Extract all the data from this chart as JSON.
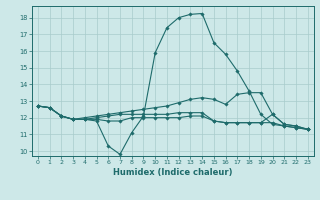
{
  "background_color": "#cde8e8",
  "grid_color": "#a8cccc",
  "line_color": "#1e6b6b",
  "xlabel": "Humidex (Indice chaleur)",
  "xlim": [
    -0.5,
    23.5
  ],
  "ylim": [
    9.7,
    18.7
  ],
  "yticks": [
    10,
    11,
    12,
    13,
    14,
    15,
    16,
    17,
    18
  ],
  "xticks": [
    0,
    1,
    2,
    3,
    4,
    5,
    6,
    7,
    8,
    9,
    10,
    11,
    12,
    13,
    14,
    15,
    16,
    17,
    18,
    19,
    20,
    21,
    22,
    23
  ],
  "line1_x": [
    0,
    1,
    2,
    3,
    4,
    5,
    6,
    7,
    8,
    9,
    10,
    11,
    12,
    13,
    14,
    15,
    16,
    17,
    18,
    19,
    20,
    21,
    22,
    23
  ],
  "line1_y": [
    12.7,
    12.6,
    12.1,
    11.9,
    11.9,
    11.8,
    10.3,
    9.8,
    11.1,
    12.1,
    15.9,
    17.4,
    18.0,
    18.2,
    18.25,
    16.5,
    15.8,
    14.8,
    13.6,
    12.2,
    11.6,
    11.5,
    11.4,
    11.3
  ],
  "line2_x": [
    0,
    1,
    2,
    3,
    4,
    5,
    6,
    7,
    8,
    9,
    10,
    11,
    12,
    13,
    14,
    15,
    16,
    17,
    18,
    19,
    20,
    21,
    22,
    23
  ],
  "line2_y": [
    12.7,
    12.6,
    12.1,
    11.9,
    12.0,
    12.1,
    12.2,
    12.3,
    12.4,
    12.5,
    12.6,
    12.7,
    12.9,
    13.1,
    13.2,
    13.1,
    12.8,
    13.4,
    13.5,
    13.5,
    12.2,
    11.6,
    11.5,
    11.3
  ],
  "line3_x": [
    0,
    1,
    2,
    3,
    4,
    5,
    6,
    7,
    8,
    9,
    10,
    11,
    12,
    13,
    14,
    15,
    16,
    17,
    18,
    19,
    20,
    21,
    22,
    23
  ],
  "line3_y": [
    12.7,
    12.6,
    12.1,
    11.9,
    11.9,
    11.9,
    11.8,
    11.8,
    12.0,
    12.0,
    12.0,
    12.0,
    12.0,
    12.1,
    12.1,
    11.8,
    11.7,
    11.7,
    11.7,
    11.7,
    11.7,
    11.5,
    11.4,
    11.3
  ],
  "line4_x": [
    0,
    1,
    2,
    3,
    4,
    5,
    6,
    7,
    8,
    9,
    10,
    11,
    12,
    13,
    14,
    15,
    16,
    17,
    18,
    19,
    20,
    21,
    22,
    23
  ],
  "line4_y": [
    12.7,
    12.6,
    12.1,
    11.9,
    11.9,
    12.0,
    12.1,
    12.2,
    12.2,
    12.2,
    12.2,
    12.2,
    12.3,
    12.3,
    12.3,
    11.8,
    11.7,
    11.7,
    11.7,
    11.7,
    12.2,
    11.6,
    11.5,
    11.3
  ]
}
